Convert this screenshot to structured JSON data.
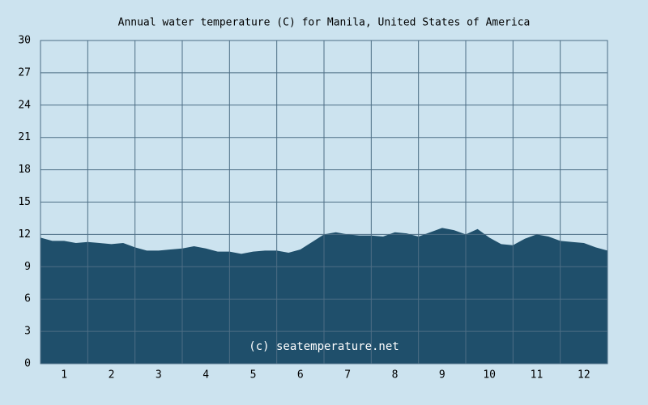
{
  "chart_data": {
    "type": "area",
    "title": "Annual water temperature (C) for Manila, United States of America",
    "watermark": "(c) seatemperature.net",
    "color": "#1f4f6b",
    "xlim": [
      0,
      12
    ],
    "xticks": [
      {
        "value": 0.5,
        "label": "1"
      },
      {
        "value": 1.5,
        "label": "2"
      },
      {
        "value": 2.5,
        "label": "3"
      },
      {
        "value": 3.5,
        "label": "4"
      },
      {
        "value": 4.5,
        "label": "5"
      },
      {
        "value": 5.5,
        "label": "6"
      },
      {
        "value": 6.5,
        "label": "7"
      },
      {
        "value": 7.5,
        "label": "8"
      },
      {
        "value": 8.5,
        "label": "9"
      },
      {
        "value": 9.5,
        "label": "10"
      },
      {
        "value": 10.5,
        "label": "11"
      },
      {
        "value": 11.5,
        "label": "12"
      }
    ],
    "xgrid": [
      1,
      2,
      3,
      4,
      5,
      6,
      7,
      8,
      9,
      10,
      11
    ],
    "ylim": [
      0,
      30
    ],
    "yticks": [
      0,
      3,
      6,
      9,
      12,
      15,
      18,
      21,
      24,
      27,
      30
    ],
    "grid": true,
    "x": [
      0,
      0.25,
      0.5,
      0.75,
      1,
      1.25,
      1.5,
      1.75,
      2,
      2.25,
      2.5,
      2.75,
      3,
      3.25,
      3.5,
      3.75,
      4,
      4.25,
      4.5,
      4.75,
      5,
      5.25,
      5.5,
      5.75,
      6,
      6.25,
      6.5,
      6.75,
      7,
      7.25,
      7.5,
      7.75,
      8,
      8.25,
      8.5,
      8.75,
      9,
      9.25,
      9.5,
      9.75,
      10,
      10.25,
      10.5,
      10.75,
      11,
      11.25,
      11.5,
      11.75,
      12
    ],
    "values": [
      11.7,
      11.4,
      11.4,
      11.2,
      11.3,
      11.2,
      11.1,
      11.2,
      10.8,
      10.5,
      10.5,
      10.6,
      10.7,
      10.9,
      10.7,
      10.4,
      10.4,
      10.2,
      10.4,
      10.5,
      10.5,
      10.3,
      10.6,
      11.3,
      12.0,
      12.2,
      12.0,
      11.9,
      11.9,
      11.8,
      12.2,
      12.1,
      11.8,
      12.2,
      12.6,
      12.4,
      12.0,
      12.5,
      11.7,
      11.1,
      11.0,
      11.6,
      12.0,
      11.8,
      11.4,
      11.3,
      11.2,
      10.8,
      10.5
    ]
  }
}
